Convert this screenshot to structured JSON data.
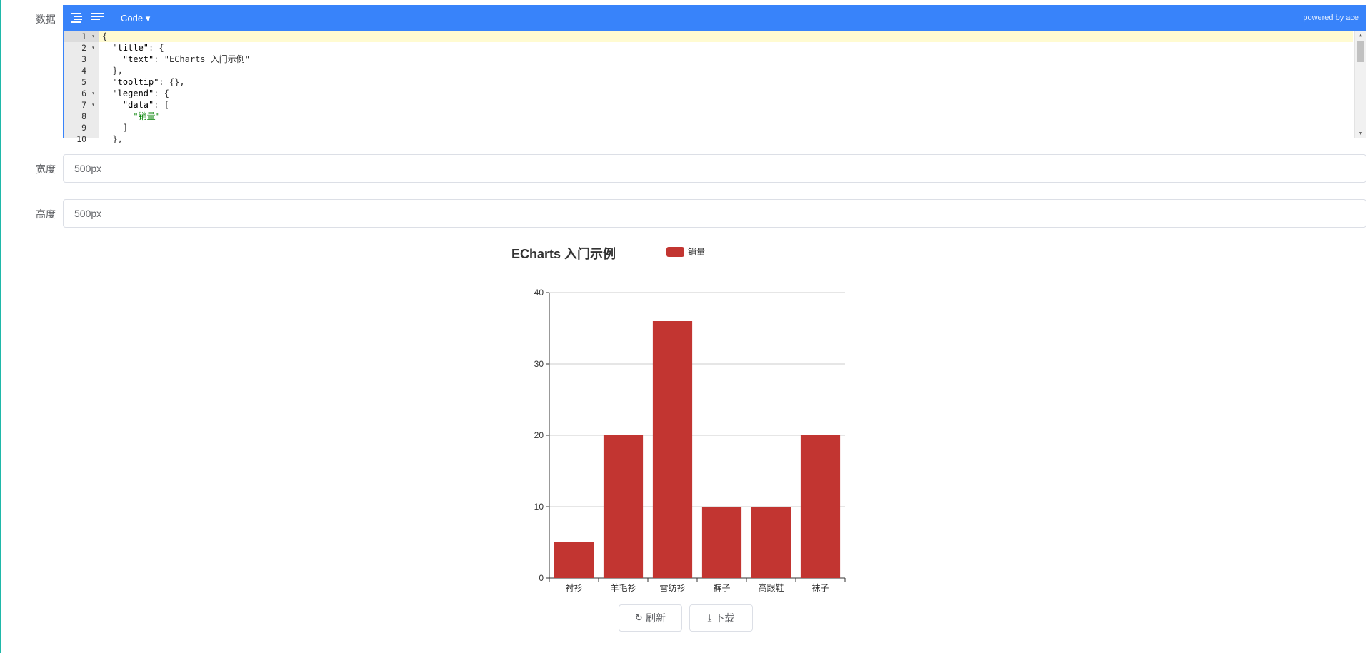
{
  "form": {
    "data_label": "数据",
    "width_label": "宽度",
    "height_label": "高度",
    "width_value": "500px",
    "height_value": "500px"
  },
  "editor": {
    "mode_label": "Code ▾",
    "powered_by": "powered by ace",
    "toolbar_icons": [
      "format-icon",
      "compact-icon"
    ],
    "lines": [
      {
        "n": "1",
        "fold": true,
        "text": "{"
      },
      {
        "n": "2",
        "fold": true,
        "text": "  \"title\": {"
      },
      {
        "n": "3",
        "fold": false,
        "text": "    \"text\": \"ECharts 入门示例\""
      },
      {
        "n": "4",
        "fold": false,
        "text": "  },"
      },
      {
        "n": "5",
        "fold": false,
        "text": "  \"tooltip\": {},"
      },
      {
        "n": "6",
        "fold": true,
        "text": "  \"legend\": {"
      },
      {
        "n": "7",
        "fold": true,
        "text": "    \"data\": ["
      },
      {
        "n": "8",
        "fold": false,
        "text": "      \"销量\""
      },
      {
        "n": "9",
        "fold": false,
        "text": "    ]"
      },
      {
        "n": "10",
        "fold": false,
        "text": "  },"
      }
    ]
  },
  "buttons": {
    "refresh": "刷新",
    "download": "下载"
  },
  "colors": {
    "accent": "#3883fa",
    "bar": "#c23531"
  },
  "chart_data": {
    "type": "bar",
    "title": "ECharts 入门示例",
    "legend": [
      "销量"
    ],
    "legend_position": "top-center",
    "categories": [
      "衬衫",
      "羊毛衫",
      "雪纺衫",
      "裤子",
      "高跟鞋",
      "袜子"
    ],
    "series": [
      {
        "name": "销量",
        "values": [
          5,
          20,
          36,
          10,
          10,
          20
        ]
      }
    ],
    "ylim": [
      0,
      40
    ],
    "yticks": [
      0,
      10,
      20,
      30,
      40
    ],
    "grid": true
  }
}
